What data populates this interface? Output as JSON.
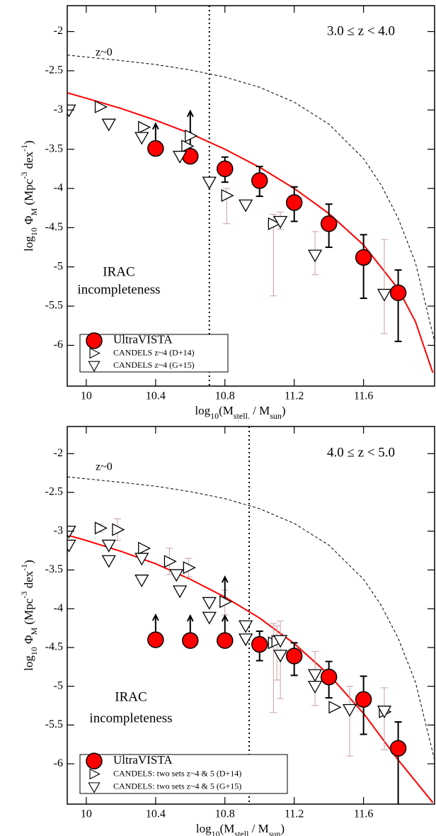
{
  "chart_data": [
    {
      "type": "scatter",
      "annotations": [
        "z~0",
        "3.0 ≤  z < 4.0",
        "IRAC",
        "incompleteness"
      ],
      "x_label": [
        {
          "text": "log"
        },
        {
          "text": "10",
          "shift": "sub"
        },
        {
          "text": "(M"
        },
        {
          "text": "stell.",
          "shift": "sub"
        },
        {
          "text": " / M"
        },
        {
          "text": "sun",
          "shift": "sub"
        },
        {
          "text": ")"
        }
      ],
      "y_label": [
        {
          "text": "log"
        },
        {
          "text": "10",
          "shift": "sub"
        },
        {
          "text": " Φ"
        },
        {
          "text": "M",
          "shift": "sub"
        },
        {
          "text": "  (Mpc"
        },
        {
          "text": "-3",
          "shift": "sup"
        },
        {
          "text": " dex"
        },
        {
          "text": "-1",
          "shift": "sup"
        },
        {
          "text": ")"
        }
      ],
      "xlim": [
        9.89,
        12.01
      ],
      "ylim": [
        -6.52,
        -1.67
      ],
      "xticks": [
        10,
        10.4,
        10.8,
        11.2,
        11.6
      ],
      "yticks": [
        -2,
        -2.5,
        -3,
        -3.5,
        -4,
        -4.5,
        -5,
        -5.5,
        -6
      ],
      "incompleteness_limit_x": 10.71,
      "legend": "lower left",
      "series": [
        {
          "name": "UltraVISTA",
          "marker": "circle",
          "color": "#ff0000",
          "error_color": "#000000",
          "x": [
            10.4,
            10.6,
            10.8,
            11.0,
            11.2,
            11.4,
            11.6,
            11.8
          ],
          "values": [
            -3.49,
            -3.59,
            -3.75,
            -3.9,
            -4.18,
            -4.45,
            -4.88,
            -5.33
          ],
          "err_plus": [
            null,
            null,
            0.15,
            0.18,
            0.2,
            0.25,
            0.29,
            0.29
          ],
          "err_minus": [
            null,
            null,
            0.17,
            0.2,
            0.24,
            0.3,
            0.52,
            0.62
          ],
          "lower_limit": [
            true,
            true,
            false,
            false,
            false,
            false,
            false,
            false
          ]
        },
        {
          "name": "CANDELS z~4 (D+14)",
          "marker": "triangle-right",
          "color": "#ffffff",
          "error_color": "#c8a0a0",
          "x": [
            10.08,
            10.33,
            10.58,
            10.6,
            10.81,
            11.08
          ],
          "values": [
            -2.96,
            -3.22,
            -3.46,
            -3.33,
            -4.09,
            -4.45
          ],
          "err_plus": [
            null,
            null,
            null,
            null,
            0.09,
            0.12
          ],
          "err_minus": [
            null,
            null,
            null,
            null,
            0.36,
            0.92
          ],
          "lower_limit": [
            false,
            false,
            false,
            true,
            false,
            false
          ]
        },
        {
          "name": "CANDELS z~4 (G+15)",
          "marker": "triangle-down",
          "color": "#ffffff",
          "error_color": "#c8a0a0",
          "x": [
            9.9,
            10.13,
            10.32,
            10.54,
            10.71,
            10.92,
            11.12,
            11.32,
            11.72
          ],
          "values": [
            -3.0,
            -3.18,
            -3.35,
            -3.59,
            -3.92,
            -4.21,
            -4.42,
            -4.85,
            -5.35
          ],
          "err_plus": [
            null,
            null,
            null,
            null,
            null,
            null,
            0.12,
            0.3,
            0.7
          ],
          "err_minus": [
            null,
            null,
            null,
            null,
            null,
            null,
            0.1,
            0.25,
            0.5
          ],
          "lower_limit": [
            false,
            false,
            false,
            false,
            false,
            false,
            false,
            false,
            false
          ]
        }
      ],
      "lines": [
        {
          "color": "#ff0000",
          "style": "solid",
          "x": [
            9.89,
            10.0,
            10.2,
            10.4,
            10.6,
            10.8,
            11.0,
            11.2,
            11.4,
            11.6,
            11.8,
            11.9,
            12.0
          ],
          "values": [
            -2.78,
            -2.85,
            -2.98,
            -3.13,
            -3.3,
            -3.5,
            -3.73,
            -4.0,
            -4.32,
            -4.72,
            -5.28,
            -5.7,
            -6.35
          ]
        },
        {
          "color": "#000000",
          "style": "dashed",
          "x": [
            9.89,
            10.2,
            10.4,
            10.6,
            10.8,
            11.0,
            11.2,
            11.4,
            11.6,
            11.7,
            11.8,
            11.9,
            12.01
          ],
          "values": [
            -2.3,
            -2.37,
            -2.42,
            -2.49,
            -2.58,
            -2.71,
            -2.9,
            -3.18,
            -3.62,
            -3.95,
            -4.38,
            -4.95,
            -5.95
          ]
        }
      ]
    },
    {
      "type": "scatter",
      "annotations": [
        "z~0",
        "4.0 ≤  z < 5.0",
        "IRAC",
        "incompleteness"
      ],
      "x_label": [
        {
          "text": "log"
        },
        {
          "text": "10",
          "shift": "sub"
        },
        {
          "text": "(M"
        },
        {
          "text": "stell",
          "shift": "sub"
        },
        {
          "text": " / M"
        },
        {
          "text": "sun",
          "shift": "sub"
        },
        {
          "text": ")"
        }
      ],
      "y_label": [
        {
          "text": "log"
        },
        {
          "text": "10",
          "shift": "sub"
        },
        {
          "text": " Φ"
        },
        {
          "text": "M",
          "shift": "sub"
        },
        {
          "text": "  (Mpc"
        },
        {
          "text": "-3",
          "shift": "sup"
        },
        {
          "text": " dex"
        },
        {
          "text": "-1",
          "shift": "sup"
        },
        {
          "text": ")"
        }
      ],
      "xlim": [
        9.89,
        12.01
      ],
      "ylim": [
        -6.52,
        -1.65
      ],
      "xticks": [
        10,
        10.4,
        10.8,
        11.2,
        11.6
      ],
      "yticks": [
        -2,
        -2.5,
        -3,
        -3.5,
        -4,
        -4.5,
        -5,
        -5.5,
        -6
      ],
      "incompleteness_limit_x": 10.94,
      "legend": "lower left",
      "series": [
        {
          "name": "UltraVISTA",
          "marker": "circle",
          "color": "#ff0000",
          "error_color": "#000000",
          "x": [
            10.4,
            10.6,
            10.8,
            11.0,
            11.2,
            11.4,
            11.6,
            11.8
          ],
          "values": [
            -4.4,
            -4.41,
            -4.41,
            -4.46,
            -4.61,
            -4.88,
            -5.17,
            -5.8
          ],
          "err_plus": [
            null,
            null,
            null,
            0.17,
            0.17,
            0.2,
            0.3,
            0.34
          ],
          "err_minus": [
            null,
            null,
            null,
            0.21,
            0.25,
            0.27,
            0.45,
            0.75
          ],
          "lower_limit": [
            true,
            true,
            true,
            false,
            false,
            false,
            false,
            false
          ]
        },
        {
          "name": "CANDELS: two sets z~4 & 5 (D+14)",
          "marker": "triangle-right",
          "color": "#ffffff",
          "error_color": "#c8a0a0",
          "x": [
            10.08,
            10.18,
            10.33,
            10.48,
            10.59,
            10.8,
            11.08,
            11.1,
            11.43,
            11.72
          ],
          "values": [
            -2.96,
            -2.98,
            -3.22,
            -3.39,
            -3.47,
            -3.91,
            -4.44,
            -4.42,
            -5.27,
            -5.33
          ],
          "err_plus": [
            0.05,
            0.14,
            null,
            0.17,
            0.12,
            0.15,
            0.25,
            0.2,
            null,
            null
          ],
          "err_minus": [
            0.05,
            0.14,
            null,
            0.17,
            0.12,
            0.17,
            0.9,
            0.5,
            null,
            null
          ],
          "lower_limit": [
            false,
            false,
            false,
            false,
            false,
            true,
            false,
            false,
            false,
            false
          ]
        },
        {
          "name": "CANDELS: two sets z~4 & 5 (G+15)",
          "marker": "triangle-down",
          "color": "#ffffff",
          "error_color": "#c8a0a0",
          "x": [
            9.9,
            9.9,
            10.13,
            10.13,
            10.32,
            10.32,
            10.52,
            10.54,
            10.71,
            10.71,
            10.92,
            10.92,
            11.12,
            11.12,
            11.32,
            11.32,
            11.52,
            11.72
          ],
          "values": [
            -3.0,
            -3.18,
            -3.18,
            -3.38,
            -3.35,
            -3.63,
            -3.56,
            -3.77,
            -3.92,
            -4.11,
            -4.22,
            -4.39,
            -4.41,
            -4.6,
            -4.85,
            -5.0,
            -5.3,
            -5.32
          ],
          "err_plus": [
            null,
            null,
            null,
            null,
            null,
            null,
            null,
            null,
            null,
            null,
            null,
            null,
            0.25,
            null,
            0.3,
            null,
            0.3,
            0.3
          ],
          "err_minus": [
            null,
            null,
            null,
            null,
            null,
            null,
            null,
            null,
            null,
            null,
            null,
            null,
            0.75,
            null,
            0.4,
            null,
            0.6,
            0.5
          ],
          "lower_limit": [
            false,
            false,
            false,
            false,
            false,
            false,
            false,
            false,
            false,
            false,
            false,
            false,
            false,
            false,
            false,
            false,
            false,
            false
          ]
        }
      ],
      "lines": [
        {
          "color": "#ff0000",
          "style": "solid",
          "x": [
            9.89,
            10.0,
            10.2,
            10.4,
            10.6,
            10.8,
            11.0,
            11.2,
            11.4,
            11.6,
            11.8,
            12.0
          ],
          "values": [
            -3.05,
            -3.12,
            -3.26,
            -3.42,
            -3.62,
            -3.85,
            -4.12,
            -4.45,
            -4.85,
            -5.35,
            -5.95,
            -6.5
          ]
        },
        {
          "color": "#000000",
          "style": "dashed",
          "x": [
            9.89,
            10.2,
            10.4,
            10.6,
            10.8,
            11.0,
            11.2,
            11.4,
            11.6,
            11.7,
            11.8,
            11.9,
            12.01
          ],
          "values": [
            -2.3,
            -2.37,
            -2.42,
            -2.49,
            -2.58,
            -2.71,
            -2.9,
            -3.18,
            -3.62,
            -3.95,
            -4.38,
            -4.95,
            -5.95
          ]
        }
      ]
    }
  ]
}
